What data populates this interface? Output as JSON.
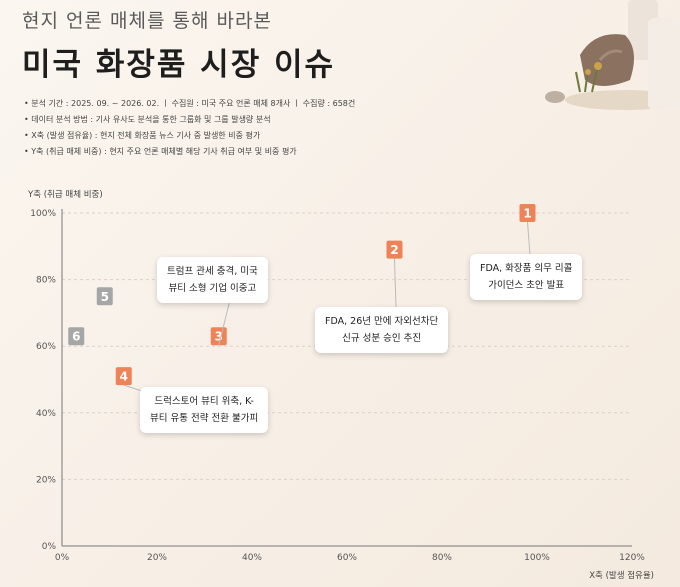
{
  "header": {
    "subtitle": "현지 언론 매체를 통해 바라본",
    "title": "미국 화장품 시장 이슈"
  },
  "notes": [
    "분석 기간 : 2025. 09. ~ 2026. 02.  ㅣ  수집원 : 미국 주요 언론 매체 8개사  ㅣ  수집량 : 658건",
    "데이터 분석 방법 : 기사 유사도 분석을 통한 그룹화 및 그룹 발생량 분석",
    "X축 (발생 점유율) : 현지 전체 화장품 뉴스 기사 중 발생한 비중 평가",
    "Y축 (취급 매체 비중) : 현지 주요 언론 매체별 해당 기사 취급 여부 및 비중 평가"
  ],
  "chart_data": {
    "type": "scatter",
    "ylabel": "Y축 (취급 매체 비중)",
    "xlabel": "X축 (발생 점유율)",
    "xlim": [
      0,
      120
    ],
    "ylim": [
      0,
      100
    ],
    "xticks": [
      "0%",
      "20%",
      "40%",
      "60%",
      "80%",
      "100%",
      "120%"
    ],
    "yticks": [
      "0%",
      "20%",
      "40%",
      "60%",
      "80%",
      "100%"
    ],
    "grid": "horizontal dashed",
    "colors": {
      "highlight": "#ee8357",
      "gray": "#a6a6a6"
    },
    "points": [
      {
        "label": "1",
        "x": 98,
        "y": 100,
        "color": "highlight",
        "callout": [
          "FDA, 화장품 의무 리콜",
          "가이던스 초안 발표"
        ]
      },
      {
        "label": "2",
        "x": 70,
        "y": 89,
        "color": "highlight",
        "callout": [
          "FDA, 26년 만에 자외선차단",
          "신규 성분 승인 추진"
        ]
      },
      {
        "label": "3",
        "x": 33,
        "y": 63,
        "color": "highlight",
        "callout": [
          "트럼프 관세 충격, 미국",
          "뷰티 소형 기업 이중고"
        ]
      },
      {
        "label": "4",
        "x": 13,
        "y": 51,
        "color": "highlight",
        "callout": [
          "드럭스토어 뷰티 위축, K-",
          "뷰티 유통 전략 전환 불가피"
        ]
      },
      {
        "label": "5",
        "x": 9,
        "y": 75,
        "color": "gray"
      },
      {
        "label": "6",
        "x": 3,
        "y": 63,
        "color": "gray"
      }
    ]
  }
}
